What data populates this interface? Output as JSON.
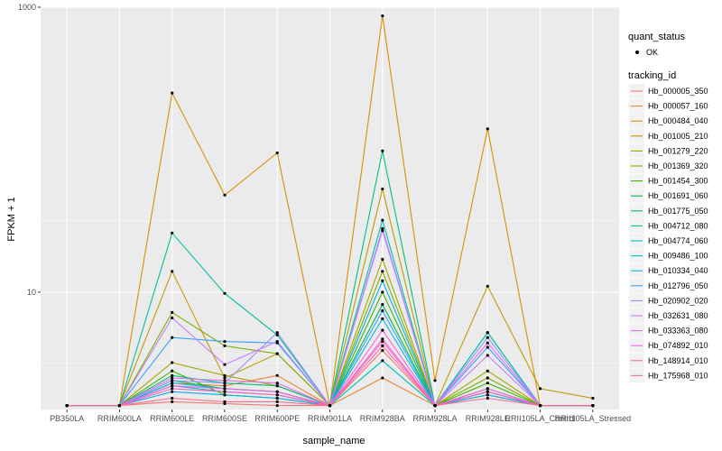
{
  "chart_data": {
    "type": "line",
    "xlabel": "sample_name",
    "ylabel": "FPKM + 1",
    "y_scale": "log10",
    "ylim": [
      1.5,
      1000
    ],
    "y_ticks": [
      10,
      1000
    ],
    "y_tick_labels": [
      "10",
      "1000"
    ],
    "categories": [
      "PB350LA",
      "RRIM600LA",
      "RRIM600LE",
      "RRIM600SE",
      "RRIM600PE",
      "RRIM901LA",
      "RRIM928BA",
      "RRIM928LA",
      "RRIM928LE",
      "RRII105LA_Control",
      "RRII105LA_Stressed"
    ],
    "legend": {
      "position": "right",
      "shape_title": "quant_status",
      "shape_items": [
        "OK"
      ],
      "color_title": "tracking_id"
    },
    "series": [
      {
        "name": "Hb_000005_350",
        "color": "#F8766D",
        "values": [
          1.6,
          1.6,
          1.7,
          1.65,
          1.6,
          1.6,
          3.9,
          1.6,
          2.1,
          1.6,
          1.6
        ]
      },
      {
        "name": "Hb_000057_160",
        "color": "#EA8331",
        "values": [
          1.6,
          1.6,
          2.3,
          2.2,
          2.6,
          1.6,
          2.5,
          1.6,
          1.9,
          1.6,
          1.6
        ]
      },
      {
        "name": "Hb_000484_040",
        "color": "#D89000",
        "values": [
          1.6,
          1.6,
          250,
          48,
          95,
          1.6,
          870,
          2.4,
          140,
          1.6,
          1.6
        ]
      },
      {
        "name": "Hb_001005_210",
        "color": "#C09B00",
        "values": [
          1.6,
          1.6,
          14,
          2.5,
          3.7,
          1.6,
          53,
          1.6,
          11,
          2.1,
          1.8
        ]
      },
      {
        "name": "Hb_001279_220",
        "color": "#A3A500",
        "values": [
          1.6,
          1.6,
          3.2,
          2.6,
          2.2,
          1.6,
          17,
          1.6,
          2.8,
          1.6,
          1.6
        ]
      },
      {
        "name": "Hb_001369_320",
        "color": "#7CAE00",
        "values": [
          1.6,
          1.6,
          7.2,
          4.2,
          3.7,
          1.6,
          14,
          1.6,
          2.5,
          1.6,
          1.6
        ]
      },
      {
        "name": "Hb_001454_300",
        "color": "#39B600",
        "values": [
          1.6,
          1.6,
          2.8,
          1.9,
          1.8,
          1.6,
          10,
          1.6,
          2.3,
          1.6,
          1.6
        ]
      },
      {
        "name": "Hb_001691_060",
        "color": "#00BB4E",
        "values": [
          1.6,
          1.6,
          2.4,
          2.1,
          2.0,
          1.6,
          8.2,
          1.6,
          2.0,
          1.6,
          1.6
        ]
      },
      {
        "name": "Hb_001775_050",
        "color": "#00BF7D",
        "values": [
          1.6,
          1.6,
          2.6,
          2.3,
          2.2,
          1.6,
          98,
          1.6,
          5.2,
          1.6,
          1.6
        ]
      },
      {
        "name": "Hb_004712_080",
        "color": "#00C1A3",
        "values": [
          1.6,
          1.6,
          26,
          9.8,
          5.0,
          1.6,
          32,
          1.6,
          5.2,
          1.6,
          1.6
        ]
      },
      {
        "name": "Hb_004774_060",
        "color": "#00BFC4",
        "values": [
          1.6,
          1.6,
          2.2,
          2.0,
          1.9,
          1.6,
          3.3,
          1.6,
          2.0,
          1.6,
          1.6
        ]
      },
      {
        "name": "Hb_009486_100",
        "color": "#00BAE0",
        "values": [
          1.6,
          1.6,
          2.3,
          2.1,
          2.0,
          1.6,
          6.5,
          1.6,
          2.1,
          1.6,
          1.6
        ]
      },
      {
        "name": "Hb_010334_040",
        "color": "#00B0F6",
        "values": [
          1.6,
          1.6,
          2.0,
          1.9,
          1.8,
          1.6,
          12,
          1.6,
          1.9,
          1.6,
          1.6
        ]
      },
      {
        "name": "Hb_012796_050",
        "color": "#35A2FF",
        "values": [
          1.6,
          1.6,
          4.8,
          4.5,
          4.4,
          1.6,
          7.4,
          1.6,
          4.1,
          1.6,
          1.6
        ]
      },
      {
        "name": "Hb_020902_020",
        "color": "#9590FF",
        "values": [
          1.6,
          1.6,
          2.4,
          2.3,
          5.2,
          1.6,
          28,
          1.6,
          4.8,
          1.6,
          1.6
        ]
      },
      {
        "name": "Hb_032631_080",
        "color": "#C77CFF",
        "values": [
          1.6,
          1.6,
          6.6,
          3.1,
          4.5,
          1.6,
          27,
          1.6,
          3.6,
          1.6,
          1.6
        ]
      },
      {
        "name": "Hb_033363_080",
        "color": "#E76BF3",
        "values": [
          1.6,
          1.6,
          2.5,
          2.4,
          2.3,
          1.6,
          4.5,
          1.6,
          4.4,
          1.6,
          1.6
        ]
      },
      {
        "name": "Hb_074892_010",
        "color": "#FA62DB",
        "values": [
          1.6,
          1.6,
          2.2,
          2.1,
          2.0,
          1.6,
          5.4,
          1.6,
          2.1,
          1.6,
          1.6
        ]
      },
      {
        "name": "Hb_148914_010",
        "color": "#FF62BC",
        "values": [
          1.6,
          1.6,
          2.1,
          2.0,
          1.9,
          1.6,
          4.7,
          1.6,
          2.0,
          1.6,
          1.6
        ]
      },
      {
        "name": "Hb_175968_010",
        "color": "#FF6C91",
        "values": [
          1.6,
          1.6,
          1.8,
          1.7,
          1.7,
          1.6,
          4.2,
          1.6,
          1.8,
          1.6,
          1.6
        ]
      }
    ]
  }
}
